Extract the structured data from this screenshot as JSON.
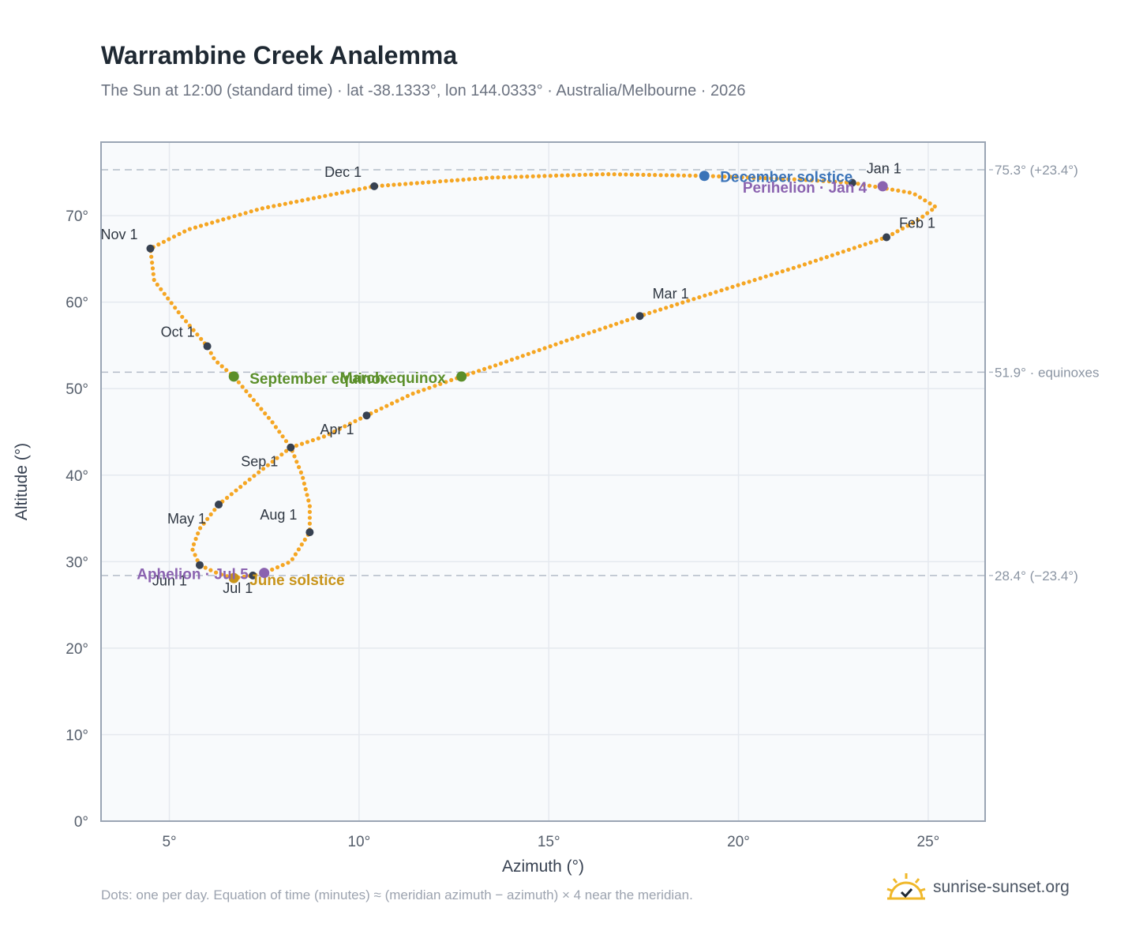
{
  "header": {
    "title": "Warrambine Creek Analemma",
    "subtitle": "The Sun at 12:00 (standard time) · lat -38.1333°, lon 144.0333° · Australia/Melbourne · 2026"
  },
  "footer": {
    "note": "Dots: one per day. Equation of time (minutes) ≈ (meridian azimuth − azimuth) × 4 near the meridian.",
    "brand": "sunrise-sunset.org"
  },
  "colors": {
    "curve": "#f5a623",
    "month_dot": "#374151",
    "equinox": "#5b8f2a",
    "june_solstice": "#c8941a",
    "december_solstice": "#3a73b8",
    "apsis": "#8b63b0",
    "grid": "#e5e9ef",
    "frame": "#9aa5b4",
    "plot_bg": "#f8fafc"
  },
  "chart_data": {
    "type": "scatter",
    "xlabel": "Azimuth (°)",
    "ylabel": "Altitude (°)",
    "xlim": [
      3.2,
      26.5
    ],
    "ylim": [
      0,
      78.5
    ],
    "x_ticks": [
      5,
      10,
      15,
      20,
      25
    ],
    "y_ticks": [
      0,
      10,
      20,
      30,
      40,
      50,
      60,
      70
    ],
    "x_tick_labels": [
      "5°",
      "10°",
      "15°",
      "20°",
      "25°"
    ],
    "y_tick_labels": [
      "0°",
      "10°",
      "20°",
      "30°",
      "40°",
      "50°",
      "60°",
      "70°"
    ],
    "grid": true,
    "reference_lines": [
      {
        "y": 75.3,
        "label": "75.3° (+23.4°)"
      },
      {
        "y": 51.9,
        "label": "51.9° · equinoxes"
      },
      {
        "y": 28.4,
        "label": "28.4° (−23.4°)"
      }
    ],
    "month_marks": [
      {
        "label": "Jan 1",
        "x": 23.0,
        "y": 73.8
      },
      {
        "label": "Feb 1",
        "x": 23.9,
        "y": 67.5
      },
      {
        "label": "Mar 1",
        "x": 17.4,
        "y": 58.4
      },
      {
        "label": "Apr 1",
        "x": 10.2,
        "y": 46.9
      },
      {
        "label": "May 1",
        "x": 6.3,
        "y": 36.6
      },
      {
        "label": "Jun 1",
        "x": 5.8,
        "y": 29.6
      },
      {
        "label": "Jul 1",
        "x": 7.2,
        "y": 28.4
      },
      {
        "label": "Aug 1",
        "x": 8.7,
        "y": 33.4
      },
      {
        "label": "Sep 1",
        "x": 8.2,
        "y": 43.2
      },
      {
        "label": "Oct 1",
        "x": 6.0,
        "y": 54.9
      },
      {
        "label": "Nov 1",
        "x": 4.5,
        "y": 66.2
      },
      {
        "label": "Dec 1",
        "x": 10.4,
        "y": 73.4
      }
    ],
    "events": [
      {
        "label": "March equinox",
        "x": 12.7,
        "y": 51.4,
        "kind": "equinox"
      },
      {
        "label": "September equinox",
        "x": 6.7,
        "y": 51.4,
        "kind": "equinox"
      },
      {
        "label": "June solstice",
        "x": 6.7,
        "y": 28.1,
        "kind": "june_solstice"
      },
      {
        "label": "December solstice",
        "x": 19.1,
        "y": 74.6,
        "kind": "december_solstice"
      },
      {
        "label": "Perihelion · Jan 4",
        "x": 23.8,
        "y": 73.4,
        "kind": "apsis"
      },
      {
        "label": "Aphelion · Jul 5",
        "x": 7.5,
        "y": 28.7,
        "kind": "apsis"
      }
    ],
    "curve_path": [
      {
        "x": 23.0,
        "y": 73.8
      },
      {
        "x": 24.6,
        "y": 72.6
      },
      {
        "x": 25.2,
        "y": 71.0
      },
      {
        "x": 24.7,
        "y": 69.4
      },
      {
        "x": 23.9,
        "y": 67.5
      },
      {
        "x": 21.7,
        "y": 64.3
      },
      {
        "x": 19.5,
        "y": 61.3
      },
      {
        "x": 17.4,
        "y": 58.4
      },
      {
        "x": 15.5,
        "y": 55.6
      },
      {
        "x": 13.6,
        "y": 52.7
      },
      {
        "x": 12.7,
        "y": 51.4
      },
      {
        "x": 11.4,
        "y": 49.4
      },
      {
        "x": 10.2,
        "y": 46.9
      },
      {
        "x": 9.1,
        "y": 44.5
      },
      {
        "x": 8.2,
        "y": 43.2
      },
      {
        "x": 7.2,
        "y": 39.8
      },
      {
        "x": 6.3,
        "y": 36.6
      },
      {
        "x": 5.8,
        "y": 33.8
      },
      {
        "x": 5.6,
        "y": 31.5
      },
      {
        "x": 5.8,
        "y": 29.6
      },
      {
        "x": 6.3,
        "y": 28.6
      },
      {
        "x": 6.7,
        "y": 28.1
      },
      {
        "x": 7.2,
        "y": 28.4
      },
      {
        "x": 7.5,
        "y": 28.7
      },
      {
        "x": 8.2,
        "y": 30.0
      },
      {
        "x": 8.7,
        "y": 33.4
      },
      {
        "x": 8.7,
        "y": 36.5
      },
      {
        "x": 8.5,
        "y": 40.0
      },
      {
        "x": 8.2,
        "y": 43.2
      },
      {
        "x": 7.7,
        "y": 46.2
      },
      {
        "x": 7.2,
        "y": 48.8
      },
      {
        "x": 6.7,
        "y": 51.4
      },
      {
        "x": 6.2,
        "y": 53.3
      },
      {
        "x": 6.0,
        "y": 54.9
      },
      {
        "x": 5.3,
        "y": 58.5
      },
      {
        "x": 4.6,
        "y": 62.5
      },
      {
        "x": 4.5,
        "y": 66.2
      },
      {
        "x": 5.5,
        "y": 68.4
      },
      {
        "x": 7.4,
        "y": 70.8
      },
      {
        "x": 10.4,
        "y": 73.4
      },
      {
        "x": 13.5,
        "y": 74.4
      },
      {
        "x": 16.5,
        "y": 74.8
      },
      {
        "x": 19.1,
        "y": 74.6
      },
      {
        "x": 21.5,
        "y": 74.2
      },
      {
        "x": 23.0,
        "y": 73.8
      }
    ]
  }
}
